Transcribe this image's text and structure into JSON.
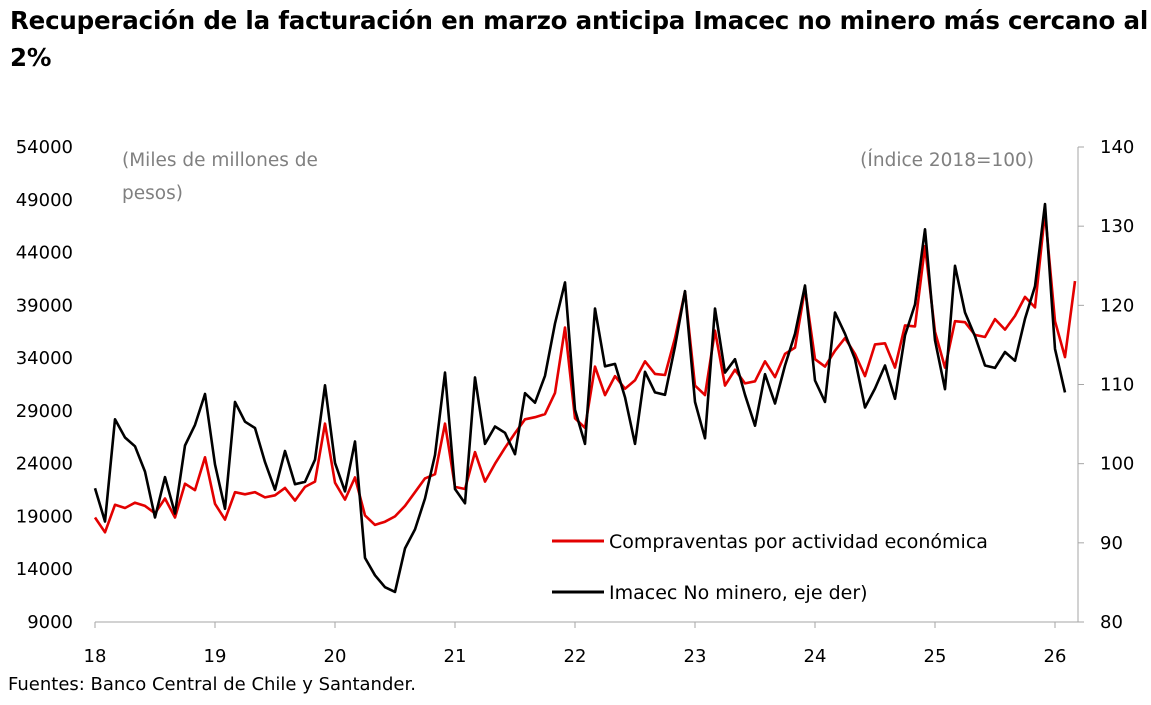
{
  "title": "Recuperación de la facturación en marzo anticipa Imacec no minero más cercano al 2%",
  "source": "Fuentes: Banco Central de Chile y Santander.",
  "chart_data": {
    "type": "line",
    "title": "Recuperación de la facturación en marzo anticipa Imacec no minero más cercano al 2%",
    "left_axis_note": [
      "(Miles de millones de",
      "pesos)"
    ],
    "right_axis_note": "(Índice 2018=100)",
    "xlabel": "",
    "ylabel_left": "Miles de millones de pesos",
    "ylabel_right": "Índice 2018=100",
    "x_ticks": [
      "18",
      "19",
      "20",
      "21",
      "22",
      "23",
      "24",
      "25",
      "26"
    ],
    "x_range": [
      "2018-01",
      "2026-03"
    ],
    "ylim_left": [
      9000,
      54000
    ],
    "yticks_left": [
      9000,
      14000,
      19000,
      24000,
      29000,
      34000,
      39000,
      44000,
      49000,
      54000
    ],
    "ylim_right": [
      80,
      140
    ],
    "yticks_right": [
      80,
      90,
      100,
      110,
      120,
      130,
      140
    ],
    "grid": false,
    "legend_position": "bottom-right",
    "series": [
      {
        "name": "Compraventas por actividad económica",
        "axis": "left",
        "color": "#e30000",
        "start": "2018-01",
        "values": [
          18900,
          17500,
          20100,
          19800,
          20300,
          20000,
          19300,
          20700,
          18900,
          22100,
          21500,
          24600,
          20200,
          18700,
          21300,
          21100,
          21300,
          20800,
          21000,
          21700,
          20500,
          21800,
          22300,
          27800,
          22200,
          20600,
          22700,
          19100,
          18200,
          18500,
          19000,
          20000,
          21300,
          22600,
          23000,
          27800,
          21800,
          21600,
          25100,
          22300,
          24000,
          25500,
          26900,
          28200,
          28400,
          28700,
          30700,
          36900,
          28300,
          27400,
          33200,
          30500,
          32300,
          31100,
          31900,
          33700,
          32500,
          32400,
          35900,
          40300,
          31400,
          30500,
          36600,
          31400,
          32900,
          31600,
          31800,
          33700,
          32200,
          34400,
          35000,
          40600,
          33900,
          33200,
          34700,
          35900,
          34400,
          32300,
          35300,
          35400,
          33100,
          37100,
          37000,
          44600,
          36500,
          33100,
          37500,
          37400,
          36200,
          36000,
          37700,
          36700,
          38000,
          39800,
          38800,
          47800,
          37500,
          34100,
          41300
        ]
      },
      {
        "name": "Imacec No minero, eje der)",
        "axis": "right",
        "color": "#000000",
        "start": "2018-01",
        "values": [
          96.9,
          92.7,
          105.6,
          103.3,
          102.2,
          99.0,
          93.2,
          98.3,
          93.7,
          102.3,
          104.9,
          108.8,
          99.9,
          94.3,
          107.8,
          105.3,
          104.5,
          100.2,
          96.7,
          101.6,
          97.4,
          97.7,
          100.5,
          109.9,
          100.1,
          96.5,
          102.8,
          88.1,
          85.9,
          84.4,
          83.8,
          89.3,
          91.7,
          95.6,
          101.1,
          111.5,
          96.8,
          95.0,
          110.9,
          102.5,
          104.7,
          103.9,
          101.2,
          108.9,
          107.7,
          111.1,
          117.7,
          122.9,
          106.8,
          102.5,
          119.6,
          112.3,
          112.6,
          108.4,
          102.5,
          111.6,
          109.0,
          108.7,
          114.8,
          121.8,
          107.8,
          103.2,
          119.6,
          111.5,
          113.2,
          108.7,
          104.8,
          111.3,
          107.6,
          112.4,
          116.4,
          122.5,
          110.5,
          107.8,
          119.1,
          116.4,
          113.2,
          107.1,
          109.5,
          112.4,
          108.2,
          116.2,
          120.1,
          129.6,
          115.6,
          109.4,
          125.0,
          119.1,
          116.1,
          112.4,
          112.1,
          114.1,
          113.0,
          118.3,
          122.4,
          132.8,
          114.5,
          109.0
        ]
      }
    ]
  }
}
